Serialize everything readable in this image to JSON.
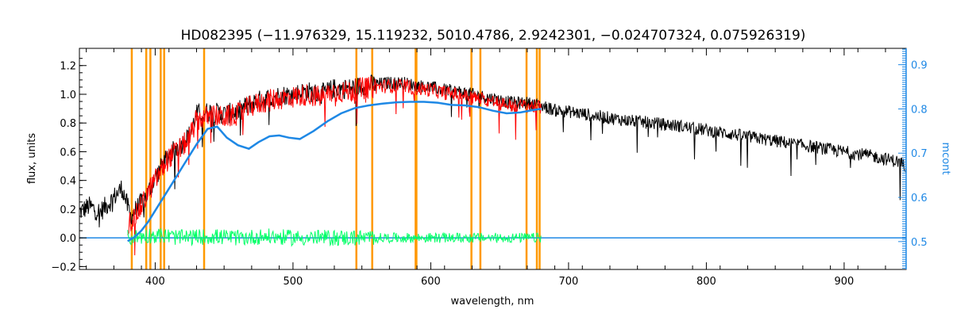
{
  "chart_data": {
    "type": "line",
    "title": "HD082395    (−11.976329, 15.119232, 5010.4786, 2.9242301, −0.024707324, 0.075926319)",
    "xlabel": "wavelength, nm",
    "ylabel": "flux, units",
    "y2label": "mcont",
    "xlim": [
      345,
      945
    ],
    "ylim": [
      -0.22,
      1.32
    ],
    "y2lim": [
      0.437,
      0.937
    ],
    "grid": false,
    "x_ticks": [
      400,
      500,
      600,
      700,
      800,
      900
    ],
    "y_ticks": [
      -0.2,
      0.0,
      0.2,
      0.4,
      0.6,
      0.8,
      1.0,
      1.2
    ],
    "y_tick_labels": [
      "−0.2",
      "0.0",
      "0.2",
      "0.4",
      "0.6",
      "0.8",
      "1.0",
      "1.2"
    ],
    "y2_ticks": [
      0.5,
      0.6,
      0.7,
      0.8,
      0.9
    ],
    "y2_tick_labels": [
      "0.5",
      "0.6",
      "0.7",
      "0.8",
      "0.9"
    ],
    "colors": {
      "observed": "#000000",
      "model": "#ff0000",
      "residual": "#00ff66",
      "continuum": "#1e88e5",
      "masks": "#ff9900",
      "right_axis": "#1e88e5"
    },
    "mask_lines": [
      383,
      393.5,
      396.5,
      404,
      406.5,
      435.5,
      546,
      557.5,
      589.0,
      589.6,
      629.5,
      636,
      669.5,
      677,
      679
    ],
    "series": [
      {
        "role": "observed",
        "x": [
          345,
          352,
          360,
          368,
          376,
          382,
          388,
          394,
          400,
          410,
          420,
          425,
          430,
          440,
          450,
          460,
          470,
          480,
          490,
          500,
          510,
          520,
          530,
          540,
          550,
          560,
          570,
          580,
          590,
          600,
          610,
          620,
          630,
          640,
          650,
          660,
          670,
          680,
          690,
          700,
          720,
          740,
          760,
          780,
          800,
          820,
          840,
          860,
          880,
          900,
          920,
          940,
          945
        ],
        "y": [
          0.18,
          0.22,
          0.18,
          0.26,
          0.35,
          0.15,
          0.22,
          0.3,
          0.42,
          0.58,
          0.66,
          0.72,
          0.86,
          0.88,
          0.86,
          0.88,
          0.94,
          0.97,
          0.99,
          1.0,
          1.02,
          1.0,
          1.04,
          1.04,
          1.06,
          1.07,
          1.08,
          1.08,
          1.06,
          1.05,
          1.03,
          1.02,
          1.0,
          0.98,
          0.96,
          0.94,
          0.94,
          0.92,
          0.89,
          0.88,
          0.85,
          0.82,
          0.8,
          0.78,
          0.75,
          0.72,
          0.69,
          0.66,
          0.63,
          0.6,
          0.57,
          0.53,
          0.5
        ]
      },
      {
        "role": "model",
        "x": [
          380,
          385,
          390,
          395,
          400,
          410,
          420,
          425,
          430,
          440,
          450,
          460,
          470,
          480,
          490,
          500,
          510,
          520,
          530,
          540,
          550,
          560,
          570,
          580,
          590,
          600,
          610,
          620,
          630,
          640,
          650,
          660,
          670,
          680
        ],
        "y": [
          0.1,
          0.14,
          0.22,
          0.32,
          0.4,
          0.56,
          0.64,
          0.7,
          0.82,
          0.85,
          0.84,
          0.86,
          0.92,
          0.95,
          0.97,
          0.98,
          1.0,
          0.98,
          1.02,
          1.02,
          1.04,
          1.05,
          1.06,
          1.06,
          1.04,
          1.03,
          1.01,
          1.0,
          0.98,
          0.96,
          0.94,
          0.92,
          0.92,
          0.91
        ]
      },
      {
        "role": "residual",
        "x": [
          380,
          400,
          420,
          440,
          460,
          480,
          500,
          520,
          540,
          560,
          580,
          600,
          620,
          640,
          660,
          680
        ],
        "y": [
          0.0,
          0.02,
          0.0,
          0.01,
          0.0,
          0.01,
          0.0,
          0.0,
          0.0,
          0.0,
          0.0,
          0.0,
          0.0,
          0.0,
          0.0,
          0.0
        ]
      },
      {
        "role": "continuum",
        "x": [
          380,
          385,
          390,
          395,
          400,
          405,
          410,
          420,
          430,
          438,
          445,
          452,
          460,
          468,
          475,
          483,
          490,
          497,
          505,
          515,
          525,
          535,
          545,
          555,
          565,
          575,
          585,
          595,
          605,
          615,
          625,
          635,
          645,
          655,
          665,
          675,
          680
        ],
        "y": [
          0.501,
          0.51,
          0.525,
          0.545,
          0.57,
          0.595,
          0.62,
          0.67,
          0.72,
          0.755,
          0.76,
          0.735,
          0.718,
          0.71,
          0.725,
          0.738,
          0.74,
          0.735,
          0.732,
          0.75,
          0.772,
          0.79,
          0.802,
          0.808,
          0.812,
          0.815,
          0.816,
          0.816,
          0.814,
          0.809,
          0.808,
          0.804,
          0.796,
          0.79,
          0.792,
          0.798,
          0.8
        ]
      }
    ],
    "zero_line": {
      "xlim": [
        345,
        945
      ],
      "y": 0.0
    }
  }
}
